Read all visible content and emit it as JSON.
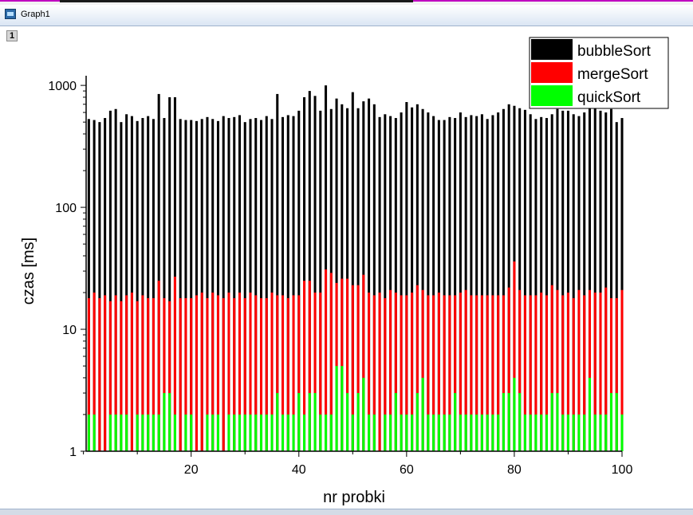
{
  "window": {
    "title": "Graph1",
    "layer_label": "1"
  },
  "chart_data": {
    "type": "bar",
    "yscale": "log",
    "xlabel": "nr probki",
    "ylabel": "czas [ms]",
    "xlim": [
      0,
      100
    ],
    "ylim": [
      1,
      1200
    ],
    "x_ticks": [
      20,
      40,
      60,
      80,
      100
    ],
    "y_ticks": [
      1,
      10,
      100,
      1000
    ],
    "y_tick_labels": [
      "1",
      "10",
      "100",
      "1000"
    ],
    "legend_position": "top-right",
    "grid": false,
    "x": [
      1,
      2,
      3,
      4,
      5,
      6,
      7,
      8,
      9,
      10,
      11,
      12,
      13,
      14,
      15,
      16,
      17,
      18,
      19,
      20,
      21,
      22,
      23,
      24,
      25,
      26,
      27,
      28,
      29,
      30,
      31,
      32,
      33,
      34,
      35,
      36,
      37,
      38,
      39,
      40,
      41,
      42,
      43,
      44,
      45,
      46,
      47,
      48,
      49,
      50,
      51,
      52,
      53,
      54,
      55,
      56,
      57,
      58,
      59,
      60,
      61,
      62,
      63,
      64,
      65,
      66,
      67,
      68,
      69,
      70,
      71,
      72,
      73,
      74,
      75,
      76,
      77,
      78,
      79,
      80,
      81,
      82,
      83,
      84,
      85,
      86,
      87,
      88,
      89,
      90,
      91,
      92,
      93,
      94,
      95,
      96,
      97,
      98,
      99,
      100
    ],
    "series": [
      {
        "name": "bubbleSort",
        "color": "#000000",
        "values": [
          530,
          520,
          500,
          540,
          620,
          640,
          500,
          580,
          560,
          510,
          540,
          560,
          530,
          850,
          540,
          800,
          800,
          530,
          520,
          520,
          510,
          530,
          550,
          530,
          510,
          560,
          540,
          550,
          570,
          500,
          530,
          540,
          520,
          560,
          530,
          850,
          550,
          570,
          560,
          620,
          800,
          900,
          820,
          620,
          1000,
          640,
          780,
          700,
          650,
          880,
          650,
          740,
          780,
          700,
          550,
          580,
          560,
          540,
          600,
          730,
          660,
          700,
          640,
          600,
          560,
          520,
          520,
          550,
          540,
          600,
          550,
          570,
          560,
          580,
          530,
          570,
          600,
          640,
          700,
          680,
          650,
          630,
          580,
          530,
          550,
          540,
          580,
          640,
          620,
          620,
          580,
          560,
          600,
          680,
          660,
          620,
          600,
          640,
          500,
          540
        ]
      },
      {
        "name": "mergeSort",
        "color": "#ff0000",
        "values": [
          18,
          20,
          18,
          19,
          17,
          19,
          17,
          19,
          20,
          17,
          19,
          18,
          18,
          25,
          18,
          17,
          27,
          18,
          18,
          18,
          19,
          20,
          18,
          20,
          19,
          18,
          20,
          18,
          20,
          18,
          20,
          19,
          18,
          18,
          20,
          19,
          19,
          18,
          19,
          19,
          25,
          25,
          20,
          20,
          31,
          29,
          24,
          26,
          26,
          23,
          23,
          28,
          20,
          19,
          20,
          18,
          21,
          20,
          19,
          19,
          20,
          23,
          21,
          19,
          19,
          20,
          19,
          19,
          19,
          20,
          21,
          19,
          19,
          19,
          19,
          19,
          19,
          19,
          22,
          36,
          21,
          19,
          19,
          19,
          20,
          19,
          23,
          21,
          19,
          20,
          18,
          21,
          19,
          21,
          20,
          20,
          22,
          18,
          18,
          21
        ]
      },
      {
        "name": "quickSort",
        "color": "#00ff00",
        "values": [
          2,
          2,
          1,
          1,
          2,
          2,
          2,
          2,
          1,
          2,
          2,
          2,
          2,
          2,
          3,
          3,
          2,
          1,
          2,
          2,
          1,
          1,
          2,
          2,
          2,
          1,
          2,
          2,
          2,
          2,
          2,
          2,
          2,
          2,
          2,
          3,
          2,
          2,
          2,
          3,
          2,
          3,
          3,
          2,
          2,
          2,
          5,
          5,
          3,
          2,
          3,
          4,
          2,
          2,
          1,
          2,
          2,
          3,
          2,
          2,
          2,
          3,
          4,
          2,
          2,
          2,
          2,
          2,
          3,
          2,
          2,
          2,
          2,
          2,
          2,
          2,
          2,
          3,
          3,
          4,
          3,
          2,
          2,
          2,
          2,
          2,
          3,
          3,
          2,
          2,
          2,
          2,
          2,
          4,
          2,
          2,
          2,
          3,
          3,
          2
        ]
      }
    ]
  }
}
